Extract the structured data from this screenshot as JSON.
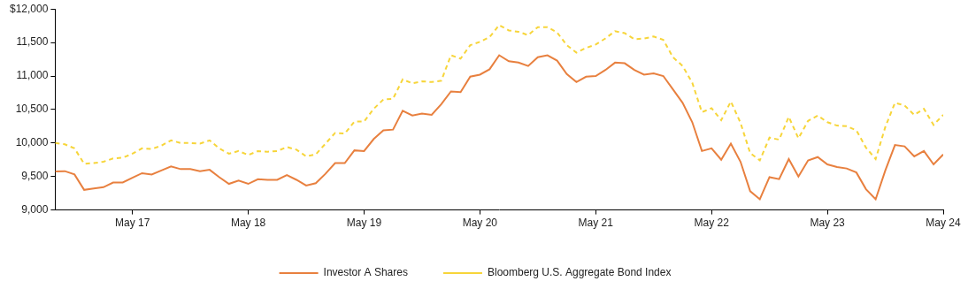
{
  "chart_data": {
    "type": "line",
    "categories": [
      null,
      null,
      null,
      null,
      null,
      null,
      null,
      null,
      "May 17",
      null,
      null,
      null,
      null,
      null,
      null,
      null,
      null,
      null,
      null,
      null,
      "May 18",
      null,
      null,
      null,
      null,
      null,
      null,
      null,
      null,
      null,
      null,
      null,
      "May 19",
      null,
      null,
      null,
      null,
      null,
      null,
      null,
      null,
      null,
      null,
      null,
      "May 20",
      null,
      null,
      null,
      null,
      null,
      null,
      null,
      null,
      null,
      null,
      null,
      "May 21",
      null,
      null,
      null,
      null,
      null,
      null,
      null,
      null,
      null,
      null,
      null,
      "May 22",
      null,
      null,
      null,
      null,
      null,
      null,
      null,
      null,
      null,
      null,
      null,
      "May 23",
      null,
      null,
      null,
      null,
      null,
      null,
      null,
      null,
      null,
      null,
      null,
      "May 24"
    ],
    "series": [
      {
        "name": "Investor A Shares",
        "color": "#e8803f",
        "line_style": "solid",
        "values": [
          9575,
          9580,
          9530,
          9300,
          9320,
          9340,
          9410,
          9410,
          9480,
          9550,
          9530,
          9590,
          9650,
          9610,
          9610,
          9580,
          9600,
          9490,
          9390,
          9440,
          9390,
          9460,
          9450,
          9450,
          9520,
          9450,
          9365,
          9400,
          9540,
          9700,
          9700,
          9890,
          9880,
          10060,
          10190,
          10200,
          10480,
          10410,
          10440,
          10420,
          10580,
          10770,
          10760,
          10990,
          11020,
          11100,
          11310,
          11220,
          11200,
          11150,
          11280,
          11310,
          11230,
          11030,
          10910,
          10990,
          11000,
          11090,
          11200,
          11190,
          11090,
          11020,
          11040,
          11000,
          10800,
          10600,
          10310,
          9880,
          9920,
          9750,
          9990,
          9720,
          9280,
          9160,
          9490,
          9460,
          9760,
          9500,
          9740,
          9790,
          9680,
          9640,
          9620,
          9560,
          9310,
          9160,
          9590,
          9970,
          9950,
          9800,
          9880,
          9680,
          9830
        ]
      },
      {
        "name": "Bloomberg U.S. Aggregate Bond Index",
        "color": "#f7d53a",
        "line_style": "dashed",
        "values": [
          10000,
          9980,
          9920,
          9690,
          9700,
          9720,
          9770,
          9780,
          9840,
          9920,
          9910,
          9960,
          10040,
          10000,
          10000,
          9990,
          10040,
          9920,
          9840,
          9880,
          9820,
          9880,
          9870,
          9880,
          9940,
          9900,
          9800,
          9830,
          9990,
          10150,
          10140,
          10320,
          10320,
          10510,
          10650,
          10660,
          10950,
          10890,
          10920,
          10910,
          10930,
          11310,
          11260,
          11460,
          11510,
          11580,
          11760,
          11680,
          11660,
          11610,
          11730,
          11730,
          11650,
          11460,
          11350,
          11420,
          11470,
          11560,
          11670,
          11640,
          11550,
          11560,
          11590,
          11540,
          11280,
          11150,
          10900,
          10460,
          10520,
          10340,
          10620,
          10300,
          9850,
          9740,
          10080,
          10050,
          10390,
          10070,
          10330,
          10410,
          10310,
          10260,
          10250,
          10190,
          9930,
          9760,
          10240,
          10600,
          10560,
          10420,
          10510,
          10270,
          10420
        ]
      }
    ],
    "ylim": [
      9000,
      12000
    ],
    "yticks": [
      {
        "value": 9000,
        "label": "9,000"
      },
      {
        "value": 9500,
        "label": "9,500"
      },
      {
        "value": 10000,
        "label": "10,000"
      },
      {
        "value": 10500,
        "label": "10,500"
      },
      {
        "value": 11000,
        "label": "11,000"
      },
      {
        "value": 11500,
        "label": "11,500"
      },
      {
        "value": 12000,
        "label": "$12,000"
      }
    ],
    "grid": false,
    "legend": "bottom"
  }
}
